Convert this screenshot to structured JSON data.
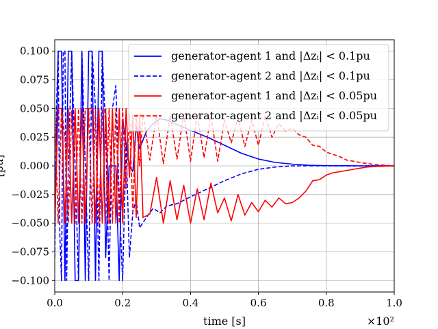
{
  "chart_data": {
    "type": "line",
    "title": "",
    "xlabel": "time [s]",
    "ylabel": "[pu]",
    "x_scale_label": "×10²",
    "xlim": [
      0.0,
      1.0
    ],
    "ylim": [
      -0.11,
      0.11
    ],
    "x_ticks": [
      0.0,
      0.2,
      0.4,
      0.6,
      0.8,
      1.0
    ],
    "x_tick_labels": [
      "0.0",
      "0.2",
      "0.4",
      "0.6",
      "0.8",
      "1.0"
    ],
    "y_ticks": [
      -0.1,
      -0.075,
      -0.05,
      -0.025,
      0.0,
      0.025,
      0.05,
      0.075,
      0.1
    ],
    "y_tick_labels": [
      "−0.100",
      "−0.075",
      "−0.050",
      "−0.025",
      "0.000",
      "0.025",
      "0.050",
      "0.075",
      "0.100"
    ],
    "grid": true,
    "legend_position": "top-right",
    "series": [
      {
        "name": "generator-agent 1 and |Δz_i| < 0.1pu",
        "legend_label": "generator-agent 1 and |Δzᵢ| < 0.1pu",
        "color": "#0000ff",
        "style": "solid",
        "x": [
          0.0,
          0.01,
          0.015,
          0.02,
          0.03,
          0.04,
          0.05,
          0.06,
          0.07,
          0.08,
          0.09,
          0.1,
          0.11,
          0.12,
          0.13,
          0.14,
          0.15,
          0.16,
          0.17,
          0.18,
          0.19,
          0.2,
          0.21,
          0.22,
          0.23,
          0.24,
          0.25,
          0.27,
          0.29,
          0.31,
          0.33,
          0.36,
          0.4,
          0.45,
          0.5,
          0.55,
          0.6,
          0.65,
          0.7,
          0.75,
          0.8,
          0.85,
          0.9,
          0.95,
          1.0
        ],
        "values": [
          -0.06,
          0.1,
          0.1,
          0.1,
          -0.1,
          0.1,
          0.1,
          -0.1,
          -0.1,
          0.1,
          -0.1,
          0.1,
          0.1,
          -0.1,
          0.1,
          0.1,
          -0.08,
          0.0,
          0.0,
          0.0,
          -0.1,
          0.04,
          0.02,
          0.0,
          -0.005,
          0.035,
          0.015,
          0.03,
          0.037,
          0.041,
          0.04,
          0.036,
          0.031,
          0.025,
          0.018,
          0.011,
          0.006,
          0.003,
          0.0015,
          0.0005,
          0.0002,
          0.0001,
          0.0,
          0.0,
          0.0
        ]
      },
      {
        "name": "generator-agent 2 and |Δz_i| < 0.1pu",
        "legend_label": "generator-agent 2 and |Δzᵢ| < 0.1pu",
        "color": "#0000ff",
        "style": "dashed",
        "x": [
          0.0,
          0.005,
          0.01,
          0.015,
          0.02,
          0.025,
          0.03,
          0.035,
          0.04,
          0.05,
          0.06,
          0.07,
          0.08,
          0.09,
          0.1,
          0.11,
          0.12,
          0.13,
          0.14,
          0.15,
          0.16,
          0.17,
          0.18,
          0.19,
          0.2,
          0.21,
          0.22,
          0.23,
          0.24,
          0.25,
          0.27,
          0.29,
          0.31,
          0.33,
          0.36,
          0.4,
          0.45,
          0.5,
          0.55,
          0.6,
          0.65,
          0.7,
          0.75,
          0.8,
          0.85,
          0.9,
          0.95,
          1.0
        ],
        "values": [
          -0.08,
          0.05,
          0.1,
          -0.06,
          -0.1,
          0.1,
          0.1,
          -0.1,
          0.0,
          0.1,
          0.0,
          -0.1,
          0.1,
          0.0,
          -0.1,
          0.1,
          0.05,
          -0.1,
          0.1,
          0.03,
          -0.1,
          0.05,
          0.07,
          -0.03,
          -0.1,
          0.02,
          -0.08,
          -0.04,
          -0.03,
          -0.054,
          -0.045,
          -0.037,
          -0.041,
          -0.035,
          -0.033,
          -0.027,
          -0.02,
          -0.013,
          -0.007,
          -0.003,
          -0.001,
          0.0,
          0.0,
          0.0,
          0.0,
          0.0,
          0.0,
          0.0
        ]
      },
      {
        "name": "generator-agent 1 and |Δz_i| < 0.05pu",
        "legend_label": "generator-agent 1 and |Δzᵢ| < 0.05pu",
        "color": "#ff0000",
        "style": "solid",
        "x": [
          0.0,
          0.01,
          0.02,
          0.03,
          0.04,
          0.05,
          0.06,
          0.07,
          0.08,
          0.09,
          0.1,
          0.11,
          0.12,
          0.13,
          0.14,
          0.15,
          0.16,
          0.17,
          0.18,
          0.19,
          0.2,
          0.21,
          0.22,
          0.23,
          0.24,
          0.25,
          0.26,
          0.28,
          0.3,
          0.32,
          0.34,
          0.36,
          0.38,
          0.4,
          0.42,
          0.44,
          0.46,
          0.48,
          0.5,
          0.52,
          0.54,
          0.56,
          0.58,
          0.6,
          0.62,
          0.64,
          0.66,
          0.68,
          0.7,
          0.72,
          0.74,
          0.76,
          0.78,
          0.8,
          0.82,
          0.84,
          0.86,
          0.88,
          0.9,
          0.92,
          0.95,
          1.0
        ],
        "values": [
          -0.05,
          0.05,
          0.05,
          -0.05,
          0.05,
          -0.05,
          0.05,
          -0.05,
          0.05,
          -0.05,
          0.05,
          0.05,
          -0.05,
          0.05,
          -0.05,
          0.05,
          -0.05,
          0.05,
          -0.05,
          0.05,
          -0.05,
          0.05,
          -0.01,
          0.045,
          -0.045,
          0.045,
          -0.045,
          -0.042,
          -0.01,
          -0.05,
          -0.013,
          -0.047,
          -0.017,
          -0.05,
          -0.02,
          -0.047,
          -0.015,
          -0.041,
          -0.028,
          -0.048,
          -0.025,
          -0.043,
          -0.032,
          -0.04,
          -0.03,
          -0.036,
          -0.028,
          -0.033,
          -0.032,
          -0.028,
          -0.022,
          -0.013,
          -0.012,
          -0.008,
          -0.006,
          -0.005,
          -0.004,
          -0.003,
          -0.002,
          -0.001,
          -0.0005,
          0.0
        ]
      },
      {
        "name": "generator-agent 2 and |Δz_i| < 0.05pu",
        "legend_label": "generator-agent 2 and |Δzᵢ| < 0.05pu",
        "color": "#ff0000",
        "style": "dashed",
        "x": [
          0.0,
          0.01,
          0.02,
          0.03,
          0.04,
          0.05,
          0.06,
          0.07,
          0.08,
          0.09,
          0.1,
          0.11,
          0.12,
          0.13,
          0.14,
          0.15,
          0.16,
          0.17,
          0.18,
          0.19,
          0.2,
          0.21,
          0.22,
          0.23,
          0.24,
          0.25,
          0.26,
          0.28,
          0.3,
          0.32,
          0.34,
          0.36,
          0.38,
          0.4,
          0.42,
          0.44,
          0.46,
          0.48,
          0.5,
          0.52,
          0.54,
          0.56,
          0.58,
          0.6,
          0.62,
          0.64,
          0.66,
          0.68,
          0.7,
          0.72,
          0.74,
          0.76,
          0.78,
          0.8,
          0.82,
          0.84,
          0.86,
          0.88,
          0.9,
          0.92,
          0.95,
          1.0
        ],
        "values": [
          0.05,
          -0.05,
          0.05,
          0.025,
          -0.05,
          0.048,
          -0.05,
          0.05,
          -0.05,
          0.05,
          0.05,
          -0.05,
          0.05,
          -0.05,
          0.05,
          -0.05,
          0.05,
          -0.05,
          0.05,
          -0.05,
          0.05,
          -0.02,
          0.045,
          -0.04,
          0.045,
          0.0,
          0.045,
          0.005,
          0.045,
          0.002,
          0.044,
          0.006,
          0.045,
          0.004,
          0.045,
          0.007,
          0.044,
          0.004,
          0.04,
          0.02,
          0.042,
          0.017,
          0.04,
          0.018,
          0.044,
          0.025,
          0.037,
          0.03,
          0.033,
          0.027,
          0.025,
          0.018,
          0.017,
          0.012,
          0.01,
          0.008,
          0.005,
          0.004,
          0.003,
          0.002,
          0.001,
          0.0
        ]
      }
    ]
  }
}
